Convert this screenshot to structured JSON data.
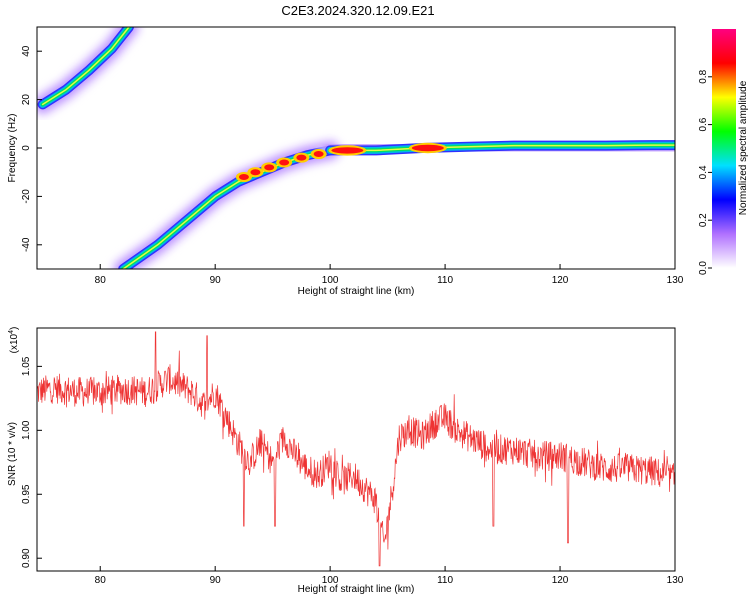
{
  "title": "C2E3.2024.320.12.09.E21",
  "chart_data": [
    {
      "type": "heatmap",
      "xlabel": "Height of straight line (km)",
      "ylabel": "Frequency (Hz)",
      "xlim": [
        74.5,
        130
      ],
      "ylim": [
        -50,
        50
      ],
      "xticks": [
        80,
        90,
        100,
        110,
        120,
        130
      ],
      "yticks": [
        -40,
        -20,
        0,
        20,
        40
      ],
      "colorbar": {
        "label": "Normalized spectral amplitude",
        "range": [
          0.0,
          1.0
        ],
        "ticks": [
          "0.0",
          "0.2",
          "0.4",
          "0.6",
          "0.8"
        ],
        "colors": [
          "#ffffff",
          "#b070ff",
          "#0000ff",
          "#00e0ff",
          "#00ff00",
          "#ffff00",
          "#ff0000",
          "#ff0080"
        ]
      },
      "tracks": [
        {
          "x": [
            75,
            77,
            79,
            81,
            82.5
          ],
          "y": [
            18,
            24,
            32,
            41,
            50
          ],
          "amp": 0.3
        },
        {
          "x": [
            82,
            85,
            88,
            90,
            92,
            94,
            96,
            98,
            99,
            100
          ],
          "y": [
            -50,
            -40,
            -28,
            -20,
            -14,
            -10,
            -6,
            -3,
            -2,
            -1
          ],
          "amp": 0.3
        },
        {
          "x": [
            100,
            104,
            108,
            112,
            116,
            120,
            124,
            128,
            130
          ],
          "y": [
            -1,
            -1,
            0,
            0.5,
            1,
            1,
            1,
            1.2,
            1.2
          ],
          "amp": 0.25
        }
      ],
      "hotspots": [
        {
          "x": 101.5,
          "y": -1,
          "amp": 1.0
        },
        {
          "x": 108.5,
          "y": 0,
          "amp": 1.0
        },
        {
          "x": 99,
          "y": -2.5,
          "amp": 0.8
        },
        {
          "x": 97.5,
          "y": -4,
          "amp": 0.75
        },
        {
          "x": 96,
          "y": -6,
          "amp": 0.7
        },
        {
          "x": 94.7,
          "y": -8,
          "amp": 0.65
        },
        {
          "x": 93.5,
          "y": -10,
          "amp": 0.6
        },
        {
          "x": 92.5,
          "y": -12,
          "amp": 0.55
        }
      ]
    },
    {
      "type": "line",
      "ylabel": "SNR (10 * v/v)",
      "xlabel": "Height of straight line (km)",
      "multiplier": "(x10",
      "multiplier_exp": "4",
      "xlim": [
        74.5,
        130
      ],
      "ylim": [
        0.89,
        1.08
      ],
      "xticks": [
        80,
        90,
        100,
        110,
        120,
        130
      ],
      "ytick_labels": [
        "0.90",
        "0.95",
        "1.00",
        "1.05"
      ],
      "yticks": [
        0.9,
        0.95,
        1.0,
        1.05
      ],
      "color": "#ee3333",
      "trend": {
        "x": [
          74.5,
          76,
          78,
          80,
          82,
          84,
          86,
          88,
          89,
          90,
          91,
          92,
          93,
          94,
          95,
          96,
          97,
          98,
          99,
          100,
          101,
          102,
          103,
          104,
          104.7,
          105.5,
          106,
          107,
          108,
          109,
          110,
          111,
          112,
          114,
          116,
          118,
          120,
          122,
          124,
          126,
          128,
          130
        ],
        "y": [
          1.03,
          1.033,
          1.03,
          1.03,
          1.032,
          1.03,
          1.04,
          1.03,
          1.02,
          1.03,
          1.01,
          0.99,
          0.975,
          0.99,
          0.975,
          0.995,
          0.98,
          0.97,
          0.965,
          0.975,
          0.96,
          0.965,
          0.955,
          0.945,
          0.91,
          0.96,
          0.995,
          1.0,
          0.995,
          1.005,
          1.01,
          1.0,
          0.995,
          0.985,
          0.985,
          0.98,
          0.98,
          0.975,
          0.97,
          0.97,
          0.968,
          0.962
        ]
      },
      "noise": 0.012,
      "spikes": [
        {
          "x": 84.8,
          "y": 1.077
        },
        {
          "x": 89.3,
          "y": 1.074
        },
        {
          "x": 92.5,
          "y": 0.925
        },
        {
          "x": 95.2,
          "y": 0.925
        },
        {
          "x": 104.3,
          "y": 0.894
        },
        {
          "x": 114.2,
          "y": 0.925
        },
        {
          "x": 120.7,
          "y": 0.912
        }
      ]
    }
  ]
}
